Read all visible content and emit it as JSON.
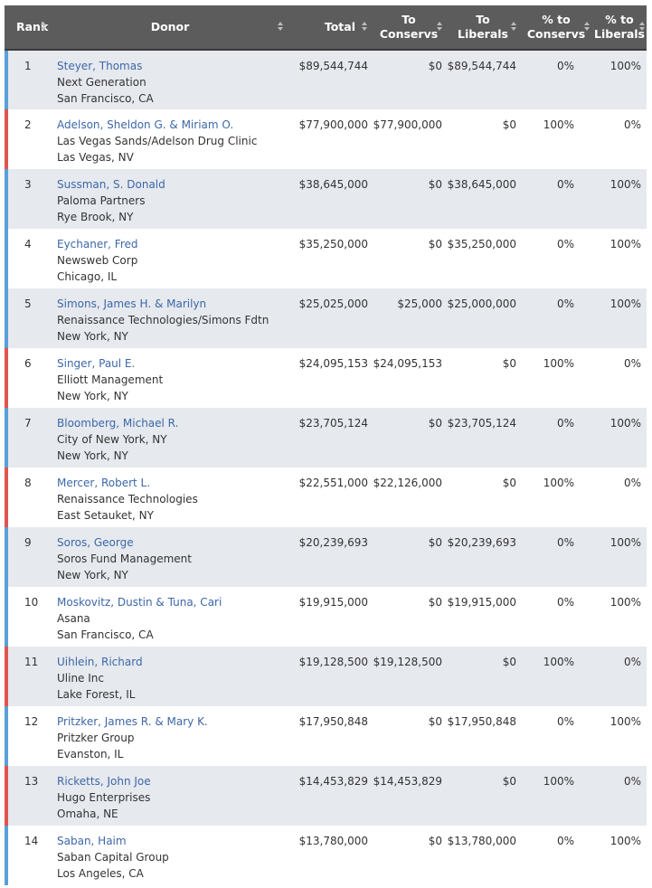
{
  "table": {
    "headers": {
      "rank": "Rank",
      "donor": "Donor",
      "total": "Total",
      "to_conservs_1": "To",
      "to_conservs_2": "Conservs",
      "to_liberals_1": "To",
      "to_liberals_2": "Liberals",
      "pct_conservs_1": "% to",
      "pct_conservs_2": "Conservs",
      "pct_liberals_1": "% to",
      "pct_liberals_2": "Liberals"
    },
    "rows": [
      {
        "rank": "1",
        "name": "Steyer, Thomas",
        "org": "Next Generation",
        "location": "San Francisco, CA",
        "total": "$89,544,744",
        "to_conservs": "$0",
        "to_liberals": "$89,544,744",
        "pct_conservs": "0%",
        "pct_liberals": "100%",
        "lean": "liberal"
      },
      {
        "rank": "2",
        "name": "Adelson, Sheldon G. & Miriam O.",
        "org": "Las Vegas Sands/Adelson Drug Clinic",
        "location": "Las Vegas, NV",
        "total": "$77,900,000",
        "to_conservs": "$77,900,000",
        "to_liberals": "$0",
        "pct_conservs": "100%",
        "pct_liberals": "0%",
        "lean": "conservative"
      },
      {
        "rank": "3",
        "name": "Sussman, S. Donald",
        "org": "Paloma Partners",
        "location": "Rye Brook, NY",
        "total": "$38,645,000",
        "to_conservs": "$0",
        "to_liberals": "$38,645,000",
        "pct_conservs": "0%",
        "pct_liberals": "100%",
        "lean": "liberal"
      },
      {
        "rank": "4",
        "name": "Eychaner, Fred",
        "org": "Newsweb Corp",
        "location": "Chicago, IL",
        "total": "$35,250,000",
        "to_conservs": "$0",
        "to_liberals": "$35,250,000",
        "pct_conservs": "0%",
        "pct_liberals": "100%",
        "lean": "liberal"
      },
      {
        "rank": "5",
        "name": "Simons, James H. & Marilyn",
        "org": "Renaissance Technologies/Simons Fdtn",
        "location": "New York, NY",
        "total": "$25,025,000",
        "to_conservs": "$25,000",
        "to_liberals": "$25,000,000",
        "pct_conservs": "0%",
        "pct_liberals": "100%",
        "lean": "liberal"
      },
      {
        "rank": "6",
        "name": "Singer, Paul E.",
        "org": "Elliott Management",
        "location": "New York, NY",
        "total": "$24,095,153",
        "to_conservs": "$24,095,153",
        "to_liberals": "$0",
        "pct_conservs": "100%",
        "pct_liberals": "0%",
        "lean": "conservative"
      },
      {
        "rank": "7",
        "name": "Bloomberg, Michael R.",
        "org": "City of New York, NY",
        "location": "New York, NY",
        "total": "$23,705,124",
        "to_conservs": "$0",
        "to_liberals": "$23,705,124",
        "pct_conservs": "0%",
        "pct_liberals": "100%",
        "lean": "liberal"
      },
      {
        "rank": "8",
        "name": "Mercer, Robert L.",
        "org": "Renaissance Technologies",
        "location": "East Setauket, NY",
        "total": "$22,551,000",
        "to_conservs": "$22,126,000",
        "to_liberals": "$0",
        "pct_conservs": "100%",
        "pct_liberals": "0%",
        "lean": "conservative"
      },
      {
        "rank": "9",
        "name": "Soros, George",
        "org": "Soros Fund Management",
        "location": "New York, NY",
        "total": "$20,239,693",
        "to_conservs": "$0",
        "to_liberals": "$20,239,693",
        "pct_conservs": "0%",
        "pct_liberals": "100%",
        "lean": "liberal"
      },
      {
        "rank": "10",
        "name": "Moskovitz, Dustin & Tuna, Cari",
        "org": "Asana",
        "location": "San Francisco, CA",
        "total": "$19,915,000",
        "to_conservs": "$0",
        "to_liberals": "$19,915,000",
        "pct_conservs": "0%",
        "pct_liberals": "100%",
        "lean": "liberal"
      },
      {
        "rank": "11",
        "name": "Uihlein, Richard",
        "org": "Uline Inc",
        "location": "Lake Forest, IL",
        "total": "$19,128,500",
        "to_conservs": "$19,128,500",
        "to_liberals": "$0",
        "pct_conservs": "100%",
        "pct_liberals": "0%",
        "lean": "conservative"
      },
      {
        "rank": "12",
        "name": "Pritzker, James R. & Mary K.",
        "org": "Pritzker Group",
        "location": "Evanston, IL",
        "total": "$17,950,848",
        "to_conservs": "$0",
        "to_liberals": "$17,950,848",
        "pct_conservs": "0%",
        "pct_liberals": "100%",
        "lean": "liberal"
      },
      {
        "rank": "13",
        "name": "Ricketts, John Joe",
        "org": "Hugo Enterprises",
        "location": "Omaha, NE",
        "total": "$14,453,829",
        "to_conservs": "$14,453,829",
        "to_liberals": "$0",
        "pct_conservs": "100%",
        "pct_liberals": "0%",
        "lean": "conservative"
      },
      {
        "rank": "14",
        "name": "Saban, Haim",
        "org": "Saban Capital Group",
        "location": "Los Angeles, CA",
        "total": "$13,780,000",
        "to_conservs": "$0",
        "to_liberals": "$13,780,000",
        "pct_conservs": "0%",
        "pct_liberals": "100%",
        "lean": "liberal"
      }
    ]
  },
  "colors": {
    "header_bg": "#5c5c5c",
    "row_alt_bg": "#e6e9ee",
    "liberal_accent": "#5aa0d8",
    "conservative_accent": "#e0554d",
    "link": "#3c67a8"
  }
}
